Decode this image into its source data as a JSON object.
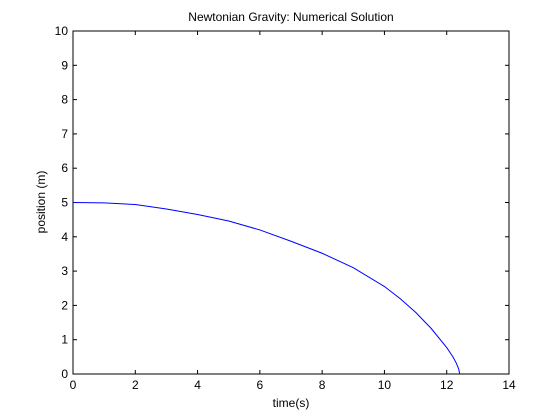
{
  "chart_data": {
    "type": "line",
    "title": "Newtonian Gravity: Numerical Solution",
    "xlabel": "time(s)",
    "ylabel": "position (m)",
    "xlim": [
      0,
      14
    ],
    "ylim": [
      0,
      10
    ],
    "xticks": [
      0,
      2,
      4,
      6,
      8,
      10,
      12,
      14
    ],
    "yticks": [
      0,
      1,
      2,
      3,
      4,
      5,
      6,
      7,
      8,
      9,
      10
    ],
    "xtick_labels": [
      "0",
      "2",
      "4",
      "6",
      "8",
      "10",
      "12",
      "14"
    ],
    "ytick_labels": [
      "0",
      "1",
      "2",
      "3",
      "4",
      "5",
      "6",
      "7",
      "8",
      "9",
      "10"
    ],
    "grid": false,
    "series": [
      {
        "color": "#0000ff",
        "x": [
          0,
          1,
          2,
          3,
          4,
          5,
          6,
          7,
          8,
          9,
          10,
          10.5,
          11,
          11.5,
          12,
          12.2,
          12.3,
          12.38,
          12.42
        ],
        "y": [
          5.0,
          4.99,
          4.94,
          4.81,
          4.65,
          4.46,
          4.2,
          3.87,
          3.52,
          3.1,
          2.55,
          2.2,
          1.8,
          1.33,
          0.77,
          0.5,
          0.33,
          0.16,
          0.0
        ]
      }
    ]
  }
}
